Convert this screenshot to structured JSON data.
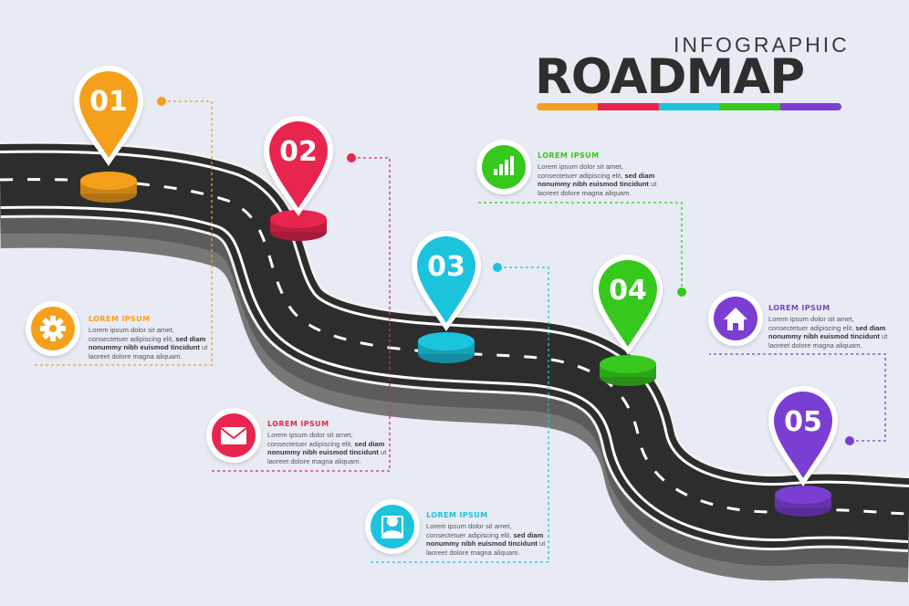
{
  "title": {
    "small": "INFOGRAPHIC",
    "big": "ROADMAP"
  },
  "colors": {
    "orange": "#f5a01a",
    "red": "#e8254e",
    "cyan": "#1cc3dd",
    "green": "#36c81d",
    "purple": "#7b3ed2",
    "road": "#2d2d2d",
    "road_side": "#7a7a7a",
    "background": "#e8ebf4"
  },
  "steps": [
    {
      "number": "01",
      "icon": "gear-icon",
      "color": "#f5a01a",
      "heading": "LOREM IPSUM",
      "line1": "Lorem ipsum dolor sit amet,",
      "line2a": "consectetuer adipiscing elit, ",
      "line2b": "sed diam",
      "line3": "nonummy nibh euismod tincidunt",
      "line3b": " ut",
      "line4": "laoreet dolore magna aliquam."
    },
    {
      "number": "02",
      "icon": "envelope-icon",
      "color": "#e8254e",
      "heading": "LOREM IPSUM",
      "line1": "Lorem ipsum dolor sit amet,",
      "line2a": "consectetuer adipiscing elit, ",
      "line2b": "sed diam",
      "line3": "nonummy nibh euismod tincidunt",
      "line3b": " ut",
      "line4": "laoreet dolore magna aliquam."
    },
    {
      "number": "03",
      "icon": "user-icon",
      "color": "#1cc3dd",
      "heading": "LOREM IPSUM",
      "line1": "Lorem ipsum dolor sit amet,",
      "line2a": "consectetuer adipiscing elit, ",
      "line2b": "sed diam",
      "line3": "nonummy nibh euismod tincidunt",
      "line3b": " ut",
      "line4": "laoreet dolore magna aliquam."
    },
    {
      "number": "04",
      "icon": "bar-chart-icon",
      "color": "#36c81d",
      "heading": "LOREM IPSUM",
      "line1": "Lorem ipsum dolor sit amet,",
      "line2a": "consectetuer adipiscing elit, ",
      "line2b": "sed diam",
      "line3": "nonummy nibh euismod tincidunt",
      "line3b": " ut",
      "line4": "laoreet dolore magna aliquam."
    },
    {
      "number": "05",
      "icon": "home-icon",
      "color": "#7b3ed2",
      "heading": "LOREM IPSUM",
      "line1": "Lorem ipsum dolor sit amet,",
      "line2a": "consectetuer adipiscing elit, ",
      "line2b": "sed diam",
      "line3": "nonummy nibh euismod tincidunt",
      "line3b": " ut",
      "line4": "laoreet dolore magna aliquam."
    }
  ]
}
